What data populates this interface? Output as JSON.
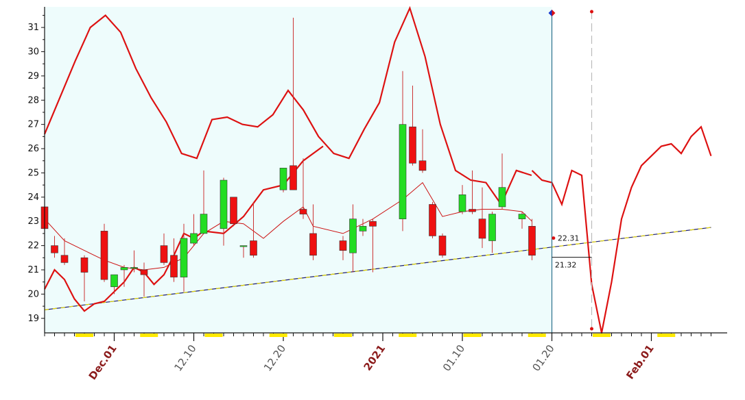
{
  "chart_data": {
    "type": "candlestick",
    "ylim": [
      18.4,
      31.85
    ],
    "yticks": [
      19,
      20,
      21,
      22,
      23,
      24,
      25,
      26,
      27,
      28,
      29,
      30,
      31
    ],
    "xlim": [
      0,
      67
    ],
    "xticks": [
      {
        "label": "Dec.01",
        "x": 7,
        "major": true
      },
      {
        "label": "12.10",
        "x": 15,
        "major": false
      },
      {
        "label": "12.20",
        "x": 24,
        "major": false
      },
      {
        "label": "2021",
        "x": 34,
        "major": true
      },
      {
        "label": "01.10",
        "x": 42,
        "major": false
      },
      {
        "label": "01.20",
        "x": 51,
        "major": false
      },
      {
        "label": "Feb.01",
        "x": 61,
        "major": true
      }
    ],
    "candles": [
      {
        "x": 0,
        "o": 23.6,
        "h": 23.8,
        "l": 22.5,
        "c": 22.7
      },
      {
        "x": 1,
        "o": 22.0,
        "h": 22.4,
        "l": 21.5,
        "c": 21.7
      },
      {
        "x": 2,
        "o": 21.6,
        "h": 22.3,
        "l": 21.2,
        "c": 21.3
      },
      {
        "x": 4,
        "o": 21.5,
        "h": 21.6,
        "l": 19.7,
        "c": 20.9
      },
      {
        "x": 6,
        "o": 22.6,
        "h": 22.9,
        "l": 20.5,
        "c": 20.6
      },
      {
        "x": 7,
        "o": 20.3,
        "h": 20.8,
        "l": 20.0,
        "c": 20.8
      },
      {
        "x": 8,
        "o": 21.0,
        "h": 21.2,
        "l": 20.3,
        "c": 21.1
      },
      {
        "x": 9,
        "o": 21.1,
        "h": 21.8,
        "l": 20.9,
        "c": 21.1
      },
      {
        "x": 10,
        "o": 21.0,
        "h": 21.3,
        "l": 19.9,
        "c": 20.8
      },
      {
        "x": 12,
        "o": 22.0,
        "h": 22.5,
        "l": 21.2,
        "c": 21.3
      },
      {
        "x": 13,
        "o": 21.6,
        "h": 22.3,
        "l": 20.5,
        "c": 20.7
      },
      {
        "x": 14,
        "o": 20.7,
        "h": 22.9,
        "l": 20.1,
        "c": 22.3
      },
      {
        "x": 15,
        "o": 22.1,
        "h": 23.3,
        "l": 22.0,
        "c": 22.5
      },
      {
        "x": 16,
        "o": 22.5,
        "h": 25.1,
        "l": 22.5,
        "c": 23.3
      },
      {
        "x": 18,
        "o": 22.7,
        "h": 24.8,
        "l": 22.0,
        "c": 24.7
      },
      {
        "x": 19,
        "o": 24.0,
        "h": 24.0,
        "l": 22.8,
        "c": 22.9
      },
      {
        "x": 20,
        "o": 22.0,
        "h": 22.0,
        "l": 21.5,
        "c": 22.0
      },
      {
        "x": 21,
        "o": 22.2,
        "h": 23.8,
        "l": 21.5,
        "c": 21.6
      },
      {
        "x": 24,
        "o": 24.3,
        "h": 25.2,
        "l": 24.2,
        "c": 25.2
      },
      {
        "x": 25,
        "o": 25.3,
        "h": 31.4,
        "l": 24.3,
        "c": 24.3
      },
      {
        "x": 26,
        "o": 23.5,
        "h": 25.6,
        "l": 23.1,
        "c": 23.3
      },
      {
        "x": 27,
        "o": 22.5,
        "h": 23.7,
        "l": 21.4,
        "c": 21.6
      },
      {
        "x": 30,
        "o": 22.2,
        "h": 22.4,
        "l": 21.4,
        "c": 21.8
      },
      {
        "x": 31,
        "o": 21.7,
        "h": 23.7,
        "l": 20.9,
        "c": 23.1
      },
      {
        "x": 32,
        "o": 22.6,
        "h": 23.1,
        "l": 22.4,
        "c": 22.8
      },
      {
        "x": 33,
        "o": 23.0,
        "h": 23.1,
        "l": 20.9,
        "c": 22.8
      },
      {
        "x": 36,
        "o": 23.1,
        "h": 29.2,
        "l": 22.6,
        "c": 27.0
      },
      {
        "x": 37,
        "o": 26.9,
        "h": 28.6,
        "l": 25.3,
        "c": 25.4
      },
      {
        "x": 38,
        "o": 25.5,
        "h": 26.8,
        "l": 25.0,
        "c": 25.1
      },
      {
        "x": 39,
        "o": 23.7,
        "h": 23.8,
        "l": 22.3,
        "c": 22.4
      },
      {
        "x": 40,
        "o": 22.4,
        "h": 22.5,
        "l": 21.5,
        "c": 21.6
      },
      {
        "x": 42,
        "o": 23.4,
        "h": 24.5,
        "l": 23.3,
        "c": 24.1
      },
      {
        "x": 43,
        "o": 23.5,
        "h": 25.1,
        "l": 23.3,
        "c": 23.4
      },
      {
        "x": 44,
        "o": 23.1,
        "h": 24.4,
        "l": 21.9,
        "c": 22.3
      },
      {
        "x": 45,
        "o": 22.2,
        "h": 23.4,
        "l": 21.7,
        "c": 23.3
      },
      {
        "x": 46,
        "o": 23.6,
        "h": 25.8,
        "l": 23.5,
        "c": 24.4
      },
      {
        "x": 48,
        "o": 23.1,
        "h": 23.4,
        "l": 22.7,
        "c": 23.3
      },
      {
        "x": 49,
        "o": 22.8,
        "h": 23.1,
        "l": 21.4,
        "c": 21.6
      }
    ],
    "upper_band": [
      [
        0,
        26.6
      ],
      [
        1,
        28.1
      ],
      [
        2,
        29.6
      ],
      [
        3,
        31.0
      ],
      [
        4,
        31.5
      ],
      [
        5,
        30.8
      ],
      [
        6,
        29.3
      ],
      [
        7,
        28.1
      ],
      [
        8,
        27.1
      ],
      [
        9,
        25.8
      ],
      [
        10,
        25.6
      ],
      [
        11,
        27.2
      ],
      [
        12,
        27.3
      ],
      [
        13,
        27.0
      ],
      [
        14,
        26.9
      ],
      [
        15,
        27.4
      ],
      [
        16,
        28.4
      ],
      [
        17,
        27.6
      ],
      [
        18,
        26.5
      ],
      [
        19,
        25.8
      ],
      [
        20,
        25.6
      ],
      [
        21,
        26.8
      ],
      [
        22,
        27.9
      ],
      [
        23,
        30.4
      ],
      [
        24,
        31.8
      ],
      [
        25,
        29.8
      ],
      [
        26,
        27.0
      ],
      [
        27,
        25.1
      ],
      [
        28,
        24.7
      ],
      [
        29,
        24.6
      ],
      [
        30,
        23.7
      ],
      [
        31,
        25.1
      ],
      [
        32,
        24.9
      ]
    ],
    "mid_line": [
      [
        0,
        23.1
      ],
      [
        2,
        22.2
      ],
      [
        4,
        21.8
      ],
      [
        6,
        21.4
      ],
      [
        8,
        21.1
      ],
      [
        10,
        21.0
      ],
      [
        12,
        21.1
      ],
      [
        14,
        21.5
      ],
      [
        16,
        22.5
      ],
      [
        18,
        23.0
      ],
      [
        20,
        22.9
      ],
      [
        22,
        22.3
      ],
      [
        24,
        23.0
      ],
      [
        26,
        23.6
      ],
      [
        27,
        22.8
      ],
      [
        30,
        22.5
      ],
      [
        33,
        23.1
      ],
      [
        36,
        23.9
      ],
      [
        38,
        24.6
      ],
      [
        40,
        23.2
      ],
      [
        42,
        23.4
      ],
      [
        44,
        23.5
      ],
      [
        46,
        23.5
      ],
      [
        48,
        23.4
      ],
      [
        49,
        23.0
      ]
    ],
    "lower_band": [
      [
        0,
        20.2
      ],
      [
        1,
        21.0
      ],
      [
        2,
        20.6
      ],
      [
        3,
        19.8
      ],
      [
        4,
        19.3
      ],
      [
        5,
        19.6
      ],
      [
        6,
        19.7
      ],
      [
        8,
        20.5
      ],
      [
        9,
        21.1
      ],
      [
        10,
        20.9
      ],
      [
        11,
        20.4
      ],
      [
        12,
        20.8
      ],
      [
        13,
        21.6
      ],
      [
        14,
        22.5
      ],
      [
        15,
        22.3
      ],
      [
        16,
        22.6
      ],
      [
        18,
        22.5
      ],
      [
        20,
        23.2
      ],
      [
        22,
        24.3
      ],
      [
        24,
        24.5
      ],
      [
        26,
        25.5
      ],
      [
        28,
        26.1
      ]
    ],
    "forecast": [
      [
        49,
        25.1
      ],
      [
        50,
        24.7
      ],
      [
        51,
        24.6
      ],
      [
        52,
        23.7
      ],
      [
        53,
        25.1
      ],
      [
        54,
        24.9
      ],
      [
        55,
        20.4
      ],
      [
        56,
        18.4
      ],
      [
        57,
        20.5
      ],
      [
        58,
        23.1
      ],
      [
        59,
        24.4
      ],
      [
        60,
        25.3
      ],
      [
        61,
        25.7
      ],
      [
        62,
        26.1
      ],
      [
        63,
        26.2
      ],
      [
        64,
        25.8
      ],
      [
        65,
        26.5
      ],
      [
        66,
        26.9
      ],
      [
        67,
        25.7
      ]
    ],
    "trendline": {
      "x0": 0,
      "y0": 19.35,
      "x1": 67,
      "y1": 22.75
    },
    "cursor_x": 51,
    "projection_x": 55,
    "labels": [
      {
        "text": "22.31",
        "x": 51.3,
        "y": 22.31
      },
      {
        "text": "21.32",
        "x": 51.3,
        "y": 21.32
      }
    ]
  }
}
